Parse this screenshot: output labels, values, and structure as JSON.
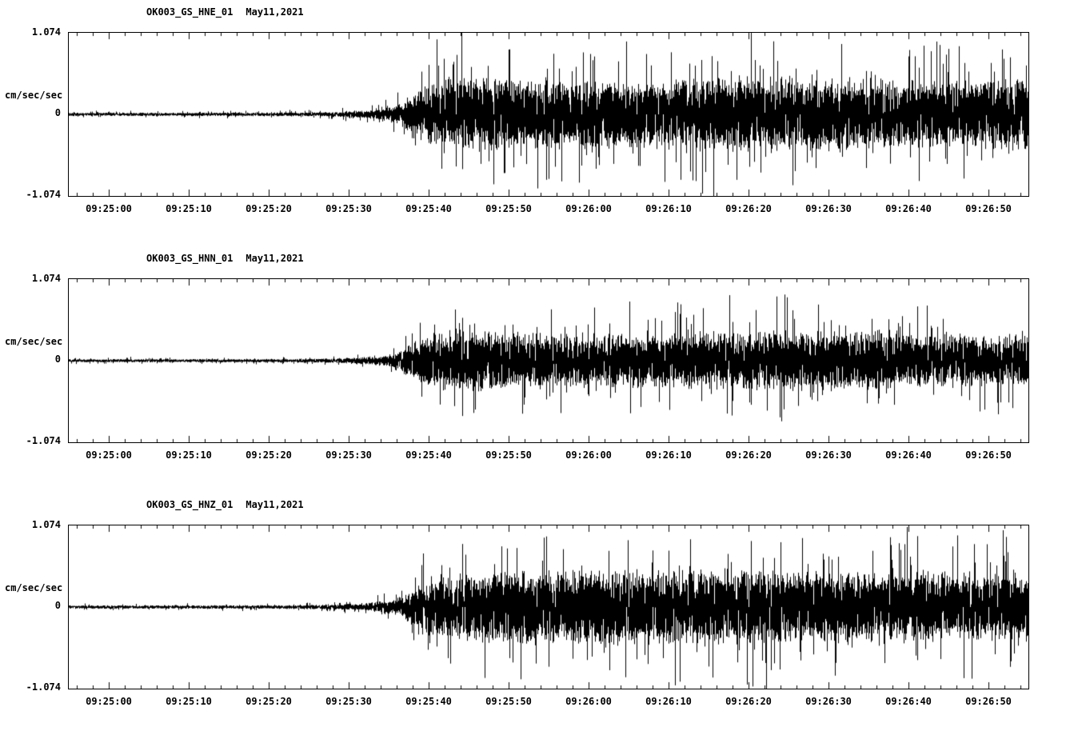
{
  "figure": {
    "background_color": "#ffffff",
    "ink_color": "#000000",
    "description": "Three stacked strong-motion seismogram traces (channels HNE, HNN, HNZ) from station OK003 on May 11, 2021. Quiet background noise until about 09:25:35, then sustained high-amplitude shaking to the end of the window."
  },
  "chart_data": [
    {
      "type": "line",
      "subtype": "seismogram",
      "title": "OK003_GS_HNE_01  May11,2021",
      "station_channel": "OK003_GS_HNE_01",
      "date_label": "May11,2021",
      "ylabel": "cm/sec/sec",
      "ytick_labels": [
        "1.074",
        "0",
        "-1.074"
      ],
      "ylim": [
        -1.074,
        1.074
      ],
      "x_start_time": "09:24:55",
      "x_end_time": "09:26:55",
      "x_span_seconds": 120,
      "xtick_labels": [
        "09:25:00",
        "09:25:10",
        "09:25:20",
        "09:25:30",
        "09:25:40",
        "09:25:50",
        "09:26:00",
        "09:26:10",
        "09:26:20",
        "09:26:30",
        "09:26:40",
        "09:26:50"
      ],
      "xtick_seconds": [
        5,
        15,
        25,
        35,
        45,
        55,
        65,
        75,
        85,
        95,
        105,
        115
      ],
      "event_onset_time": "09:25:35",
      "grid": false,
      "line_color": "#000000",
      "envelope_cm_s2": [
        [
          0,
          0.03
        ],
        [
          25,
          0.032
        ],
        [
          30,
          0.035
        ],
        [
          33,
          0.045
        ],
        [
          37,
          0.07
        ],
        [
          39,
          0.1
        ],
        [
          41,
          0.16
        ],
        [
          43,
          0.36
        ],
        [
          45,
          0.54
        ],
        [
          48,
          0.64
        ],
        [
          55,
          0.62
        ],
        [
          65,
          0.6
        ],
        [
          75,
          0.62
        ],
        [
          85,
          0.66
        ],
        [
          95,
          0.62
        ],
        [
          105,
          0.6
        ],
        [
          115,
          0.62
        ],
        [
          120,
          0.62
        ]
      ]
    },
    {
      "type": "line",
      "subtype": "seismogram",
      "title": "OK003_GS_HNN_01  May11,2021",
      "station_channel": "OK003_GS_HNN_01",
      "date_label": "May11,2021",
      "ylabel": "cm/sec/sec",
      "ytick_labels": [
        "1.074",
        "0",
        "-1.074"
      ],
      "ylim": [
        -1.074,
        1.074
      ],
      "x_start_time": "09:24:55",
      "x_end_time": "09:26:55",
      "x_span_seconds": 120,
      "xtick_labels": [
        "09:25:00",
        "09:25:10",
        "09:25:20",
        "09:25:30",
        "09:25:40",
        "09:25:50",
        "09:26:00",
        "09:26:10",
        "09:26:20",
        "09:26:30",
        "09:26:40",
        "09:26:50"
      ],
      "xtick_seconds": [
        5,
        15,
        25,
        35,
        45,
        55,
        65,
        75,
        85,
        95,
        105,
        115
      ],
      "event_onset_time": "09:25:35",
      "grid": false,
      "line_color": "#000000",
      "envelope_cm_s2": [
        [
          0,
          0.028
        ],
        [
          25,
          0.03
        ],
        [
          30,
          0.032
        ],
        [
          33,
          0.042
        ],
        [
          37,
          0.065
        ],
        [
          39,
          0.09
        ],
        [
          41,
          0.14
        ],
        [
          43,
          0.32
        ],
        [
          45,
          0.47
        ],
        [
          48,
          0.54
        ],
        [
          55,
          0.5
        ],
        [
          65,
          0.46
        ],
        [
          75,
          0.48
        ],
        [
          85,
          0.52
        ],
        [
          92,
          0.56
        ],
        [
          100,
          0.52
        ],
        [
          110,
          0.46
        ],
        [
          120,
          0.48
        ]
      ]
    },
    {
      "type": "line",
      "subtype": "seismogram",
      "title": "OK003_GS_HNZ_01  May11,2021",
      "station_channel": "OK003_GS_HNZ_01",
      "date_label": "May11,2021",
      "ylabel": "cm/sec/sec",
      "ytick_labels": [
        "1.074",
        "0",
        "-1.074"
      ],
      "ylim": [
        -1.074,
        1.074
      ],
      "x_start_time": "09:24:55",
      "x_end_time": "09:26:55",
      "x_span_seconds": 120,
      "xtick_labels": [
        "09:25:00",
        "09:25:10",
        "09:25:20",
        "09:25:30",
        "09:25:40",
        "09:25:50",
        "09:26:00",
        "09:26:10",
        "09:26:20",
        "09:26:30",
        "09:26:40",
        "09:26:50"
      ],
      "xtick_seconds": [
        5,
        15,
        25,
        35,
        45,
        55,
        65,
        75,
        85,
        95,
        105,
        115
      ],
      "event_onset_time": "09:25:35",
      "grid": false,
      "line_color": "#000000",
      "envelope_cm_s2": [
        [
          0,
          0.03
        ],
        [
          25,
          0.032
        ],
        [
          30,
          0.035
        ],
        [
          33,
          0.045
        ],
        [
          37,
          0.068
        ],
        [
          39,
          0.1
        ],
        [
          41,
          0.15
        ],
        [
          43,
          0.32
        ],
        [
          46,
          0.52
        ],
        [
          50,
          0.6
        ],
        [
          58,
          0.64
        ],
        [
          68,
          0.66
        ],
        [
          78,
          0.68
        ],
        [
          88,
          0.64
        ],
        [
          98,
          0.62
        ],
        [
          108,
          0.6
        ],
        [
          120,
          0.62
        ]
      ]
    }
  ]
}
